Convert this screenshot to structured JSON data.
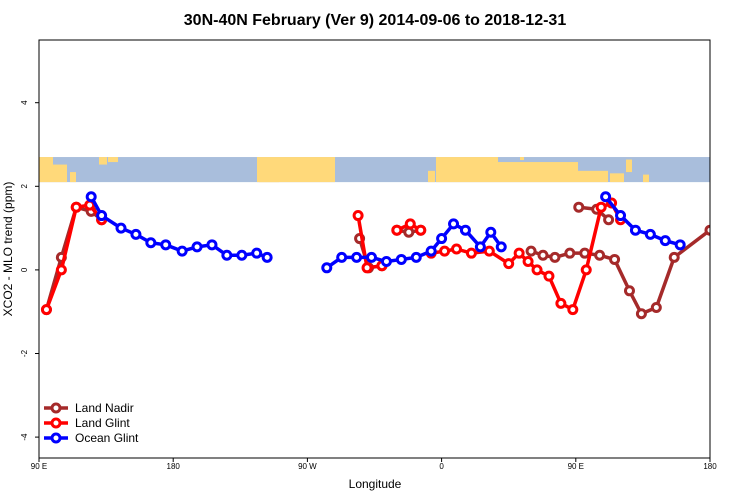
{
  "chart_data": {
    "type": "line",
    "title": "30N-40N February (Ver 9)   2014-09-06 to 2018-12-31",
    "xlabel": "Longitude",
    "ylabel": "XCO2 - MLO trend (ppm)",
    "xlim": [
      90,
      540
    ],
    "ylim": [
      -4.5,
      5.5
    ],
    "x_ticks": [
      {
        "value": 90,
        "label": "90 E"
      },
      {
        "value": 180,
        "label": "180"
      },
      {
        "value": 270,
        "label": "90 W"
      },
      {
        "value": 360,
        "label": "0"
      },
      {
        "value": 450,
        "label": "90 E"
      },
      {
        "value": 540,
        "label": "180"
      }
    ],
    "y_ticks": [
      {
        "value": -4,
        "label": "-4"
      },
      {
        "value": -2,
        "label": "-2"
      },
      {
        "value": 0,
        "label": "0"
      },
      {
        "value": 2,
        "label": "2"
      },
      {
        "value": 4,
        "label": "4"
      }
    ],
    "map_band": {
      "ylim": [
        2.1,
        2.7
      ],
      "ocean_color": "#a9bedc",
      "land_color": "#ffd97a"
    },
    "legend": {
      "position": "bottom-left"
    },
    "series": [
      {
        "name": "Land Nadir",
        "color": "#a52a2a",
        "segments": [
          [
            [
              95,
              -0.95
            ],
            [
              105,
              0.3
            ],
            [
              115,
              1.5
            ],
            [
              125,
              1.4
            ],
            [
              132,
              1.2
            ]
          ],
          [
            [
              305,
              0.75
            ],
            [
              311,
              0.05
            ],
            [
              320,
              0.1
            ]
          ],
          [
            [
              330,
              0.95
            ],
            [
              338,
              0.9
            ],
            [
              346,
              0.95
            ]
          ],
          [
            [
              420,
              0.45
            ],
            [
              428,
              0.35
            ],
            [
              436,
              0.3
            ],
            [
              446,
              0.4
            ],
            [
              456,
              0.4
            ],
            [
              466,
              0.35
            ],
            [
              476,
              0.25
            ],
            [
              486,
              -0.5
            ],
            [
              494,
              -1.05
            ],
            [
              504,
              -0.9
            ],
            [
              516,
              0.3
            ],
            [
              540,
              0.95
            ]
          ],
          [
            [
              452,
              1.5
            ],
            [
              464,
              1.45
            ],
            [
              472,
              1.2
            ]
          ]
        ]
      },
      {
        "name": "Land Glint",
        "color": "#ff0000",
        "segments": [
          [
            [
              95,
              -0.95
            ],
            [
              105,
              0.0
            ],
            [
              115,
              1.5
            ],
            [
              124,
              1.55
            ],
            [
              132,
              1.2
            ]
          ],
          [
            [
              304,
              1.3
            ],
            [
              310,
              0.05
            ],
            [
              320,
              0.1
            ]
          ],
          [
            [
              330,
              0.95
            ],
            [
              339,
              1.1
            ],
            [
              346,
              0.95
            ]
          ],
          [
            [
              353,
              0.4
            ],
            [
              362,
              0.45
            ],
            [
              370,
              0.5
            ],
            [
              380,
              0.4
            ],
            [
              392,
              0.45
            ],
            [
              405,
              0.15
            ],
            [
              412,
              0.4
            ],
            [
              418,
              0.2
            ],
            [
              424,
              0.0
            ],
            [
              432,
              -0.15
            ],
            [
              440,
              -0.8
            ],
            [
              448,
              -0.95
            ],
            [
              457,
              0.0
            ],
            [
              467,
              1.5
            ],
            [
              474,
              1.6
            ],
            [
              480,
              1.2
            ]
          ]
        ]
      },
      {
        "name": "Ocean Glint",
        "color": "#0000ff",
        "segments": [
          [
            [
              125,
              1.75
            ],
            [
              132,
              1.3
            ],
            [
              145,
              1.0
            ],
            [
              155,
              0.85
            ],
            [
              165,
              0.65
            ],
            [
              175,
              0.6
            ],
            [
              186,
              0.45
            ],
            [
              196,
              0.55
            ],
            [
              206,
              0.6
            ],
            [
              216,
              0.35
            ],
            [
              226,
              0.35
            ],
            [
              236,
              0.4
            ],
            [
              243,
              0.3
            ]
          ],
          [
            [
              283,
              0.05
            ],
            [
              293,
              0.3
            ],
            [
              303,
              0.3
            ],
            [
              313,
              0.3
            ],
            [
              323,
              0.2
            ],
            [
              333,
              0.25
            ],
            [
              343,
              0.3
            ],
            [
              353,
              0.45
            ],
            [
              360,
              0.75
            ],
            [
              368,
              1.1
            ],
            [
              376,
              0.95
            ],
            [
              386,
              0.55
            ],
            [
              393,
              0.9
            ],
            [
              400,
              0.55
            ]
          ],
          [
            [
              470,
              1.75
            ],
            [
              480,
              1.3
            ],
            [
              490,
              0.95
            ],
            [
              500,
              0.85
            ],
            [
              510,
              0.7
            ],
            [
              520,
              0.6
            ]
          ]
        ]
      }
    ]
  }
}
